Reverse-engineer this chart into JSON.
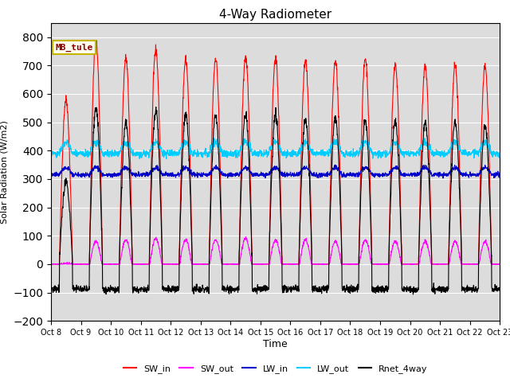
{
  "title": "4-Way Radiometer",
  "xlabel": "Time",
  "ylabel": "Solar Radiation (W/m2)",
  "ylim": [
    -200,
    850
  ],
  "yticks": [
    -200,
    -100,
    0,
    100,
    200,
    300,
    400,
    500,
    600,
    700,
    800
  ],
  "background_color": "#dcdcdc",
  "annotation_text": "MB_tule",
  "annotation_color": "#8B0000",
  "annotation_bg": "#fffff0",
  "annotation_border": "#c8b400",
  "legend": [
    "SW_in",
    "SW_out",
    "LW_in",
    "LW_out",
    "Rnet_4way"
  ],
  "legend_colors": [
    "#ff0000",
    "#ff00ff",
    "#0000cc",
    "#00ccff",
    "#000000"
  ],
  "SW_in_peaks": [
    580,
    790,
    725,
    755,
    720,
    725,
    730,
    725,
    720,
    715,
    725,
    705,
    700,
    700,
    695
  ],
  "SW_out_peaks": [
    0,
    80,
    85,
    90,
    85,
    85,
    90,
    85,
    85,
    80,
    85,
    80,
    80,
    80,
    80
  ],
  "Rnet_peaks": [
    290,
    550,
    500,
    545,
    530,
    525,
    530,
    525,
    510,
    520,
    505,
    505,
    500,
    500,
    490
  ],
  "LW_in_base": 315,
  "LW_out_base": 390,
  "night_Rnet": -88,
  "samples_per_hour": 6,
  "hours_per_day": 24,
  "num_days": 15
}
